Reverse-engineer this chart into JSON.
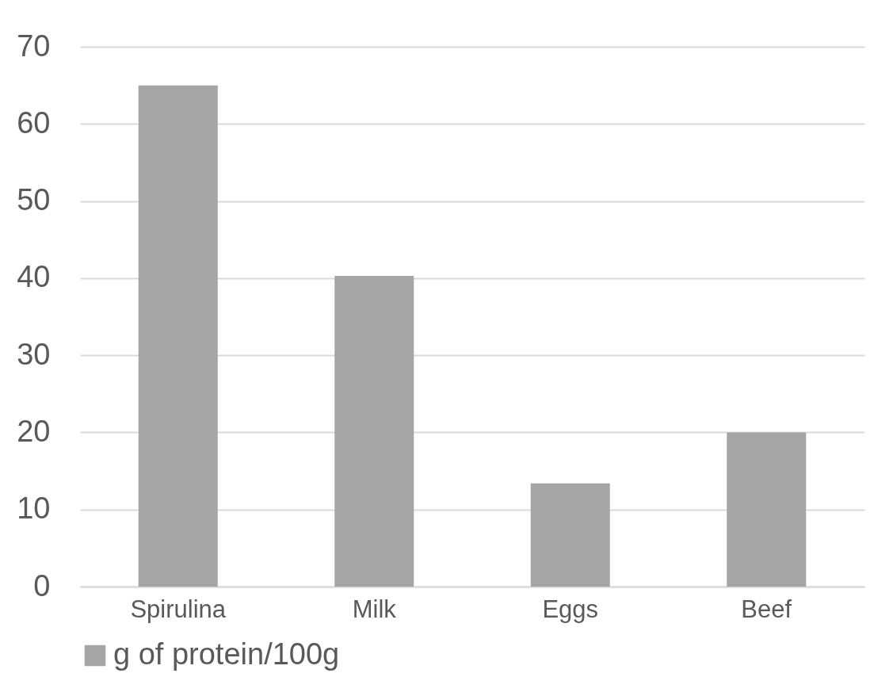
{
  "chart_data": {
    "type": "bar",
    "categories": [
      "Spirulina",
      "Milk",
      "Eggs",
      "Beef"
    ],
    "series": [
      {
        "name": "g of protein/100g",
        "color": "#a5a5a5",
        "values": [
          65,
          40.3,
          13.4,
          20
        ]
      }
    ],
    "ylim": [
      0,
      70
    ],
    "yticks": [
      0,
      10,
      20,
      30,
      40,
      50,
      60,
      70
    ],
    "grid": "y",
    "legend": "bottom"
  }
}
